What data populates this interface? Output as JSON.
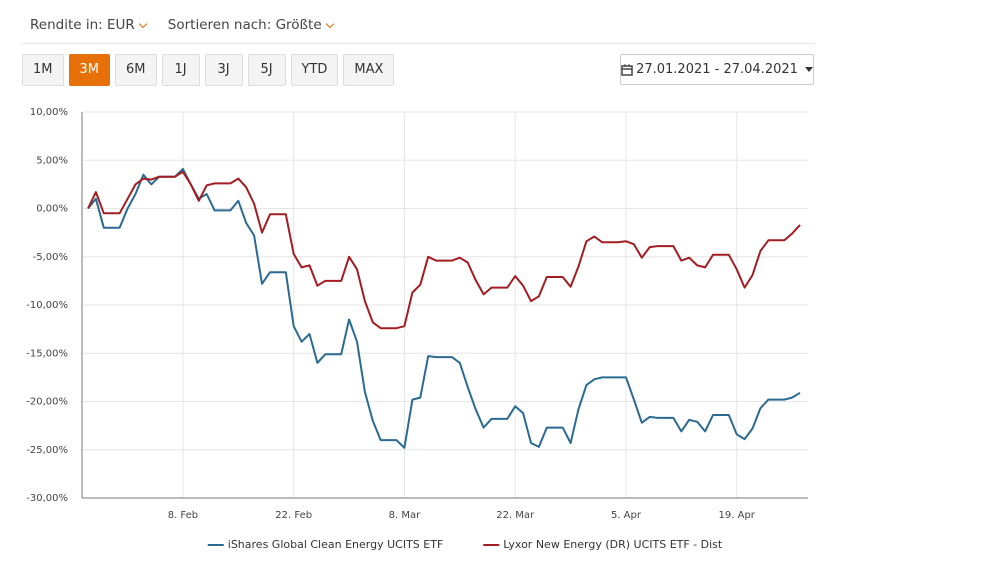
{
  "controls": {
    "currency": "Rendite in: EUR",
    "sort": "Sortieren nach: Größte",
    "periods": [
      "1M",
      "3M",
      "6M",
      "1J",
      "3J",
      "5J",
      "YTD",
      "MAX"
    ],
    "active_period": "3M",
    "date_range": "27.01.2021 - 27.04.2021"
  },
  "chart_data": {
    "type": "line",
    "legend": "bottom",
    "grid": true,
    "categories": [
      null,
      null,
      null,
      null,
      null,
      null,
      null,
      null,
      null,
      null,
      null,
      null,
      "8. Feb",
      null,
      null,
      null,
      null,
      null,
      null,
      null,
      null,
      null,
      null,
      null,
      null,
      null,
      "22. Feb",
      null,
      null,
      null,
      null,
      null,
      null,
      null,
      null,
      null,
      null,
      null,
      null,
      null,
      "8. Mar",
      null,
      null,
      null,
      null,
      null,
      null,
      null,
      null,
      null,
      null,
      null,
      null,
      null,
      "22. Mar",
      null,
      null,
      null,
      null,
      null,
      null,
      null,
      null,
      null,
      null,
      null,
      null,
      null,
      "5. Apr",
      null,
      null,
      null,
      null,
      null,
      null,
      null,
      null,
      null,
      null,
      null,
      null,
      null,
      "19. Apr",
      null,
      null,
      null,
      null,
      null,
      null,
      null,
      null
    ],
    "ylim": [
      -30,
      10
    ],
    "yticks": [
      {
        "value": -30,
        "label": "-30,00%"
      },
      {
        "value": -25,
        "label": "-25,00%"
      },
      {
        "value": -20,
        "label": "-20,00%"
      },
      {
        "value": -15,
        "label": "-15,00%"
      },
      {
        "value": -10,
        "label": "-10,00%"
      },
      {
        "value": -5,
        "label": "-5,00%"
      },
      {
        "value": 0,
        "label": "0,00%"
      },
      {
        "value": 5,
        "label": "5,00%"
      },
      {
        "value": 10,
        "label": "10,00%"
      }
    ],
    "series": [
      {
        "name": "iShares Global Clean Energy UCITS ETF",
        "color": "#2b6a92",
        "values": [
          0,
          1.0,
          -2.0,
          -2.0,
          -2.0,
          0,
          1.5,
          3.5,
          2.5,
          3.3,
          3.3,
          3.3,
          4.1,
          2.5,
          1.0,
          1.5,
          -0.2,
          -0.2,
          -0.2,
          0.8,
          -1.5,
          -2.8,
          -7.8,
          -6.6,
          -6.6,
          -6.6,
          -12.2,
          -13.8,
          -13.0,
          -16.0,
          -15.1,
          -15.1,
          -15.1,
          -11.5,
          -13.8,
          -19.0,
          -22.0,
          -24.0,
          -24.0,
          -24.0,
          -24.8,
          -19.8,
          -19.6,
          -15.3,
          -15.4,
          -15.4,
          -15.4,
          -16.0,
          -18.5,
          -20.8,
          -22.7,
          -21.8,
          -21.8,
          -21.8,
          -20.5,
          -21.2,
          -24.3,
          -24.7,
          -22.7,
          -22.7,
          -22.7,
          -24.3,
          -20.8,
          -18.3,
          -17.7,
          -17.5,
          -17.5,
          -17.5,
          -17.5,
          -19.8,
          -22.2,
          -21.6,
          -21.7,
          -21.7,
          -21.7,
          -23.1,
          -21.9,
          -22.1,
          -23.1,
          -21.4,
          -21.4,
          -21.4,
          -23.4,
          -23.9,
          -22.8,
          -20.7,
          -19.8,
          -19.8,
          -19.8,
          -19.6,
          -19.1
        ]
      },
      {
        "name": "Lyxor New Energy (DR) UCITS ETF - Dist",
        "color": "#a31d22",
        "values": [
          0,
          1.7,
          -0.5,
          -0.5,
          -0.5,
          1.0,
          2.5,
          3.1,
          3.0,
          3.3,
          3.3,
          3.3,
          3.8,
          2.5,
          0.8,
          2.4,
          2.6,
          2.6,
          2.6,
          3.1,
          2.2,
          0.5,
          -2.5,
          -0.6,
          -0.6,
          -0.6,
          -4.7,
          -6.1,
          -5.9,
          -8.0,
          -7.5,
          -7.5,
          -7.5,
          -5.0,
          -6.3,
          -9.6,
          -11.8,
          -12.4,
          -12.4,
          -12.4,
          -12.2,
          -8.7,
          -7.9,
          -5.0,
          -5.4,
          -5.4,
          -5.4,
          -5.1,
          -5.6,
          -7.4,
          -8.9,
          -8.2,
          -8.2,
          -8.2,
          -7.0,
          -8.0,
          -9.6,
          -9.1,
          -7.1,
          -7.1,
          -7.1,
          -8.1,
          -6.0,
          -3.4,
          -2.9,
          -3.5,
          -3.5,
          -3.5,
          -3.4,
          -3.7,
          -5.1,
          -4.0,
          -3.9,
          -3.9,
          -3.9,
          -5.4,
          -5.1,
          -5.9,
          -6.1,
          -4.8,
          -4.8,
          -4.8,
          -6.3,
          -8.2,
          -6.9,
          -4.4,
          -3.3,
          -3.3,
          -3.3,
          -2.6,
          -1.7
        ]
      }
    ]
  }
}
